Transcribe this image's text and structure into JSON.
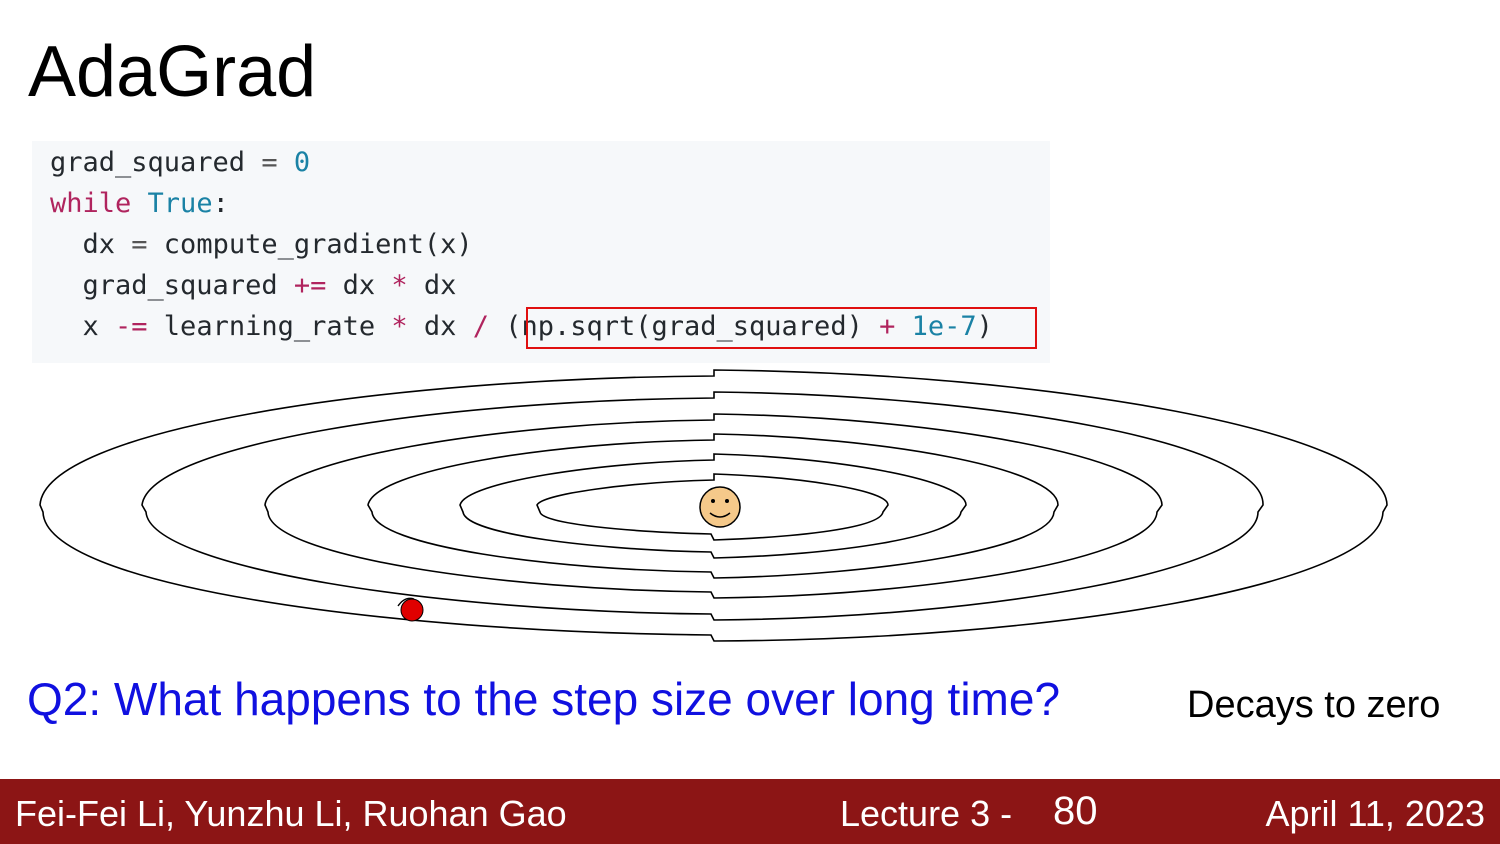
{
  "slide": {
    "title": "AdaGrad"
  },
  "code": {
    "lines": [
      {
        "text": "grad_squared = 0"
      },
      {
        "text": "while True:"
      },
      {
        "text": "  dx = compute_gradient(x)"
      },
      {
        "text": "  grad_squared += dx * dx"
      },
      {
        "text": "  x -= learning_rate * dx / (np.sqrt(grad_squared) + 1e-7)"
      }
    ],
    "tokens": {
      "l1_var": "grad_squared",
      "l1_op": " = ",
      "l1_num": "0",
      "l2_kw": "while",
      "l2_sp": " ",
      "l2_bi": "True",
      "l2_colon": ":",
      "l3_a": "  dx ",
      "l3_op": "=",
      "l3_b": " compute_gradient(x)",
      "l4_a": "  grad_squared ",
      "l4_op": "+=",
      "l4_b": " dx ",
      "l4_op2": "*",
      "l4_c": " dx",
      "l5_a": "  x ",
      "l5_op": "-=",
      "l5_b": " learning_rate ",
      "l5_op2": "*",
      "l5_c": " dx ",
      "l5_op3": "/",
      "l5_d": " (np.sqrt(grad_squared) ",
      "l5_op4": "+",
      "l5_sp": " ",
      "l5_num": "1e-7",
      "l5_e": ")"
    },
    "highlighted_expression": "(np.sqrt(grad_squared) + 1e-7)",
    "highlight_color": "#e01010"
  },
  "illustration": {
    "contour_count": 6,
    "ball_color": "#e00000",
    "face_color": "#f5c98a"
  },
  "question": {
    "text": "Q2: What happens to the step size over long time?",
    "color": "#1010e0"
  },
  "answer": {
    "text": "Decays to zero"
  },
  "footer": {
    "authors": "Fei-Fei Li, Yunzhu Li, Ruohan Gao",
    "lecture": "Lecture 3 -",
    "page": "80",
    "date": "April 11, 2023",
    "background": "#8c1515"
  }
}
